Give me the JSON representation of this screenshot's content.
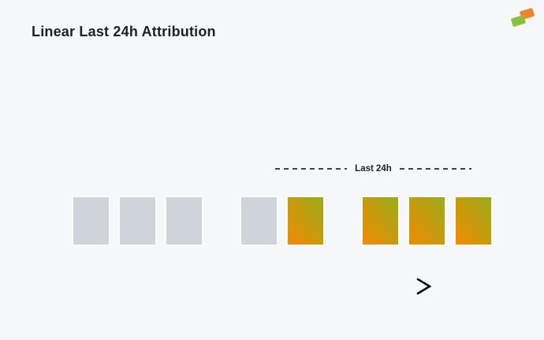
{
  "page": {
    "title": "Linear Last 24h Attribution"
  },
  "logo": {
    "shapes": [
      "orange-diamond",
      "green-diamond"
    ]
  },
  "annotation": {
    "label": "Last 24h"
  },
  "timeline": {
    "groups": [
      {
        "boxes": [
          "unattributed",
          "unattributed",
          "unattributed"
        ]
      },
      {
        "boxes": [
          "unattributed",
          "attributed"
        ]
      },
      {
        "boxes": [
          "attributed",
          "attributed",
          "attributed"
        ]
      }
    ]
  },
  "colors": {
    "background": "#f6f7f9",
    "title": "#1f2023",
    "label": "#1c2230",
    "dash": "#3a4154",
    "unattributed": "#cfd4da",
    "attributed-start": "#f28a00",
    "attributed-end": "#9aad1b",
    "arrow": "#0a0a0a",
    "logo-orange": "#f0832a",
    "logo-green": "#8cbf3f"
  }
}
